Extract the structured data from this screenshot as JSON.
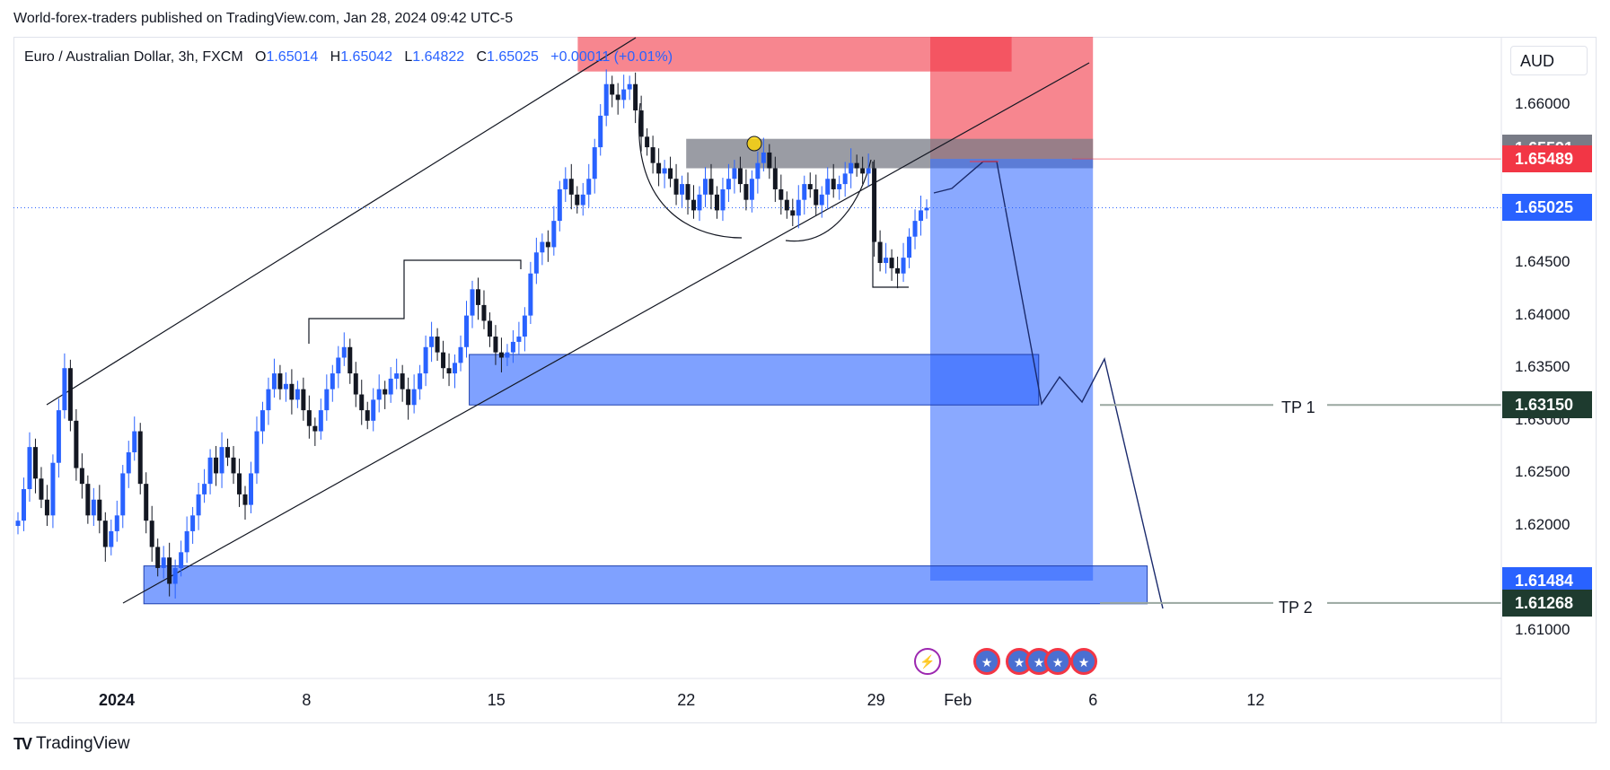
{
  "header": {
    "publish_line": "World-forex-traders published on TradingView.com, Jan 28, 2024 09:42 UTC-5"
  },
  "legend": {
    "symbol": "Euro / Australian Dollar, 3h, FXCM",
    "open_label": "O",
    "open": "1.65014",
    "high_label": "H",
    "high": "1.65042",
    "low_label": "L",
    "low": "1.64822",
    "close_label": "C",
    "close": "1.65025",
    "change": "+0.00011 (+0.01%)"
  },
  "axis": {
    "unit": "AUD",
    "y_ticks": [
      "1.66000",
      "1.64500",
      "1.64000",
      "1.63500",
      "1.63000",
      "1.62500",
      "1.62000",
      "1.61000"
    ],
    "x_ticks": [
      "2024",
      "8",
      "15",
      "22",
      "29",
      "Feb",
      "6",
      "12"
    ]
  },
  "price_tags": [
    {
      "value": "1.65591",
      "color": "#787b86"
    },
    {
      "value": "1.65489",
      "color": "#f23645"
    },
    {
      "value": "1.65025",
      "color": "#2962ff"
    },
    {
      "value": "1.63150",
      "color": "#1e3b2f"
    },
    {
      "value": "1.61484",
      "color": "#2962ff"
    },
    {
      "value": "1.61268",
      "color": "#1e3b2f"
    }
  ],
  "annotations": {
    "tp1": "TP 1",
    "tp2": "TP 2"
  },
  "footer": {
    "brand": "TradingView",
    "logo": "TV"
  },
  "chart_data": {
    "type": "candlestick",
    "symbol": "EURAUD",
    "timeframe": "3h",
    "ylim": [
      1.6055,
      1.6665
    ],
    "x_ticks": [
      {
        "label": "2024",
        "date": "2024-01-01"
      },
      {
        "label": "8",
        "date": "2024-01-08"
      },
      {
        "label": "15",
        "date": "2024-01-15"
      },
      {
        "label": "22",
        "date": "2024-01-22"
      },
      {
        "label": "29",
        "date": "2024-01-29"
      },
      {
        "label": "Feb",
        "date": "2024-02-01"
      },
      {
        "label": "6",
        "date": "2024-02-06"
      },
      {
        "label": "12",
        "date": "2024-02-12"
      }
    ],
    "last_price": 1.65025,
    "candles_close_path": [
      1.6205,
      1.6235,
      1.6275,
      1.6245,
      1.6225,
      1.621,
      1.626,
      1.631,
      1.635,
      1.63,
      1.6255,
      1.624,
      1.621,
      1.6225,
      1.6205,
      1.618,
      1.6195,
      1.621,
      1.625,
      1.627,
      1.629,
      1.624,
      1.6205,
      1.618,
      1.616,
      1.617,
      1.6145,
      1.616,
      1.6175,
      1.6195,
      1.621,
      1.623,
      1.624,
      1.6265,
      1.625,
      1.6275,
      1.6265,
      1.625,
      1.623,
      1.622,
      1.625,
      1.629,
      1.631,
      1.633,
      1.6345,
      1.633,
      1.6335,
      1.632,
      1.633,
      1.631,
      1.6295,
      1.629,
      1.631,
      1.633,
      1.6345,
      1.636,
      1.637,
      1.6345,
      1.6325,
      1.631,
      1.63,
      1.632,
      1.633,
      1.6325,
      1.634,
      1.6345,
      1.633,
      1.6315,
      1.633,
      1.6345,
      1.637,
      1.638,
      1.6365,
      1.635,
      1.6345,
      1.6355,
      1.637,
      1.64,
      1.6425,
      1.641,
      1.6395,
      1.638,
      1.6365,
      1.636,
      1.6365,
      1.6375,
      1.638,
      1.64,
      1.644,
      1.646,
      1.647,
      1.6465,
      1.649,
      1.652,
      1.653,
      1.6515,
      1.6505,
      1.6515,
      1.653,
      1.656,
      1.659,
      1.662,
      1.661,
      1.6605,
      1.6615,
      1.662,
      1.6595,
      1.657,
      1.656,
      1.6545,
      1.6535,
      1.654,
      1.653,
      1.6515,
      1.6525,
      1.651,
      1.65,
      1.6515,
      1.653,
      1.6515,
      1.65,
      1.652,
      1.653,
      1.654,
      1.6525,
      1.651,
      1.653,
      1.6545,
      1.6555,
      1.654,
      1.652,
      1.651,
      1.65,
      1.6495,
      1.651,
      1.6525,
      1.652,
      1.6505,
      1.6515,
      1.653,
      1.652,
      1.6525,
      1.6535,
      1.6545,
      1.654,
      1.6535,
      1.654,
      1.647,
      1.645,
      1.6455,
      1.6445,
      1.644,
      1.6455,
      1.6475,
      1.649,
      1.65,
      1.65025
    ],
    "zones": [
      {
        "kind": "supply",
        "from": "2024-01-18",
        "to": "2024-02-03",
        "low": 1.6632,
        "high": 1.6665,
        "color": "#f23645"
      },
      {
        "kind": "stop",
        "from": "2024-01-31",
        "to": "2024-02-06",
        "low": 1.6549,
        "high": 1.6665,
        "color": "#f23645"
      },
      {
        "kind": "entry_block",
        "from": "2024-01-22",
        "to": "2024-02-06",
        "low": 1.654,
        "high": 1.6568,
        "color": "#787b86"
      },
      {
        "kind": "target",
        "from": "2024-01-31",
        "to": "2024-02-06",
        "low": 1.6148,
        "high": 1.6549,
        "color": "#2962ff"
      },
      {
        "kind": "demand",
        "from": "2024-01-14",
        "to": "2024-02-04",
        "low": 1.6315,
        "high": 1.6363,
        "color": "#2962ff"
      },
      {
        "kind": "demand",
        "from": "2024-01-02",
        "to": "2024-02-08",
        "low": 1.6126,
        "high": 1.6162,
        "color": "#2962ff"
      }
    ],
    "levels": [
      {
        "label": "TP 1",
        "value": 1.6315
      },
      {
        "label": "TP 2",
        "value": 1.61268
      },
      {
        "value": 1.65489
      },
      {
        "value": 1.65591
      },
      {
        "value": 1.61484
      }
    ]
  }
}
